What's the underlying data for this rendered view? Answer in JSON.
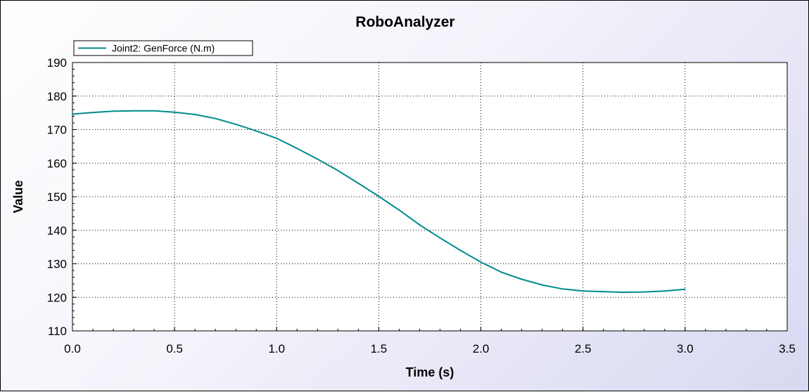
{
  "chart_data": {
    "type": "line",
    "title": "RoboAnalyzer",
    "xlabel": "Time (s)",
    "ylabel": "Value",
    "xlim": [
      0,
      3.5
    ],
    "ylim": [
      110,
      190
    ],
    "xticks": [
      "0.0",
      "0.5",
      "1.0",
      "1.5",
      "2.0",
      "2.5",
      "3.0",
      "3.5"
    ],
    "yticks": [
      "110",
      "120",
      "130",
      "140",
      "150",
      "160",
      "170",
      "180",
      "190"
    ],
    "grid": true,
    "legend_position": "top-left",
    "series": [
      {
        "name": "Joint2: GenForce (N.m)",
        "color": "#008b8b",
        "x": [
          0.0,
          0.1,
          0.2,
          0.3,
          0.4,
          0.5,
          0.6,
          0.7,
          0.8,
          0.9,
          1.0,
          1.1,
          1.2,
          1.3,
          1.4,
          1.5,
          1.6,
          1.7,
          1.8,
          1.9,
          2.0,
          2.1,
          2.2,
          2.3,
          2.4,
          2.5,
          2.6,
          2.7,
          2.8,
          2.9,
          3.0
        ],
        "y": [
          174.6,
          175.1,
          175.5,
          175.6,
          175.6,
          175.2,
          174.5,
          173.3,
          171.6,
          169.6,
          167.4,
          164.4,
          161.2,
          157.8,
          154.0,
          150.1,
          146.0,
          141.6,
          137.7,
          134.0,
          130.5,
          127.5,
          125.4,
          123.7,
          122.5,
          121.9,
          121.7,
          121.5,
          121.6,
          121.9,
          122.4
        ]
      }
    ]
  }
}
